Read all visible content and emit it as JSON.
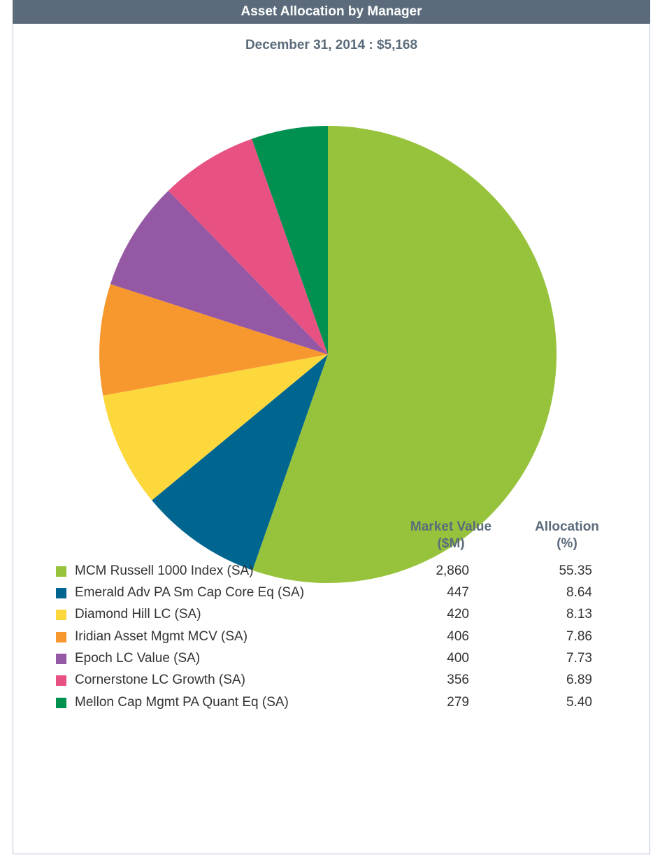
{
  "chart_data": {
    "type": "pie",
    "title": "Asset Allocation by Manager",
    "subtitle": "December 31, 2014 : $5,168",
    "categories": [
      "MCM Russell 1000 Index (SA)",
      "Emerald Adv PA Sm Cap Core Eq (SA)",
      "Diamond Hill LC (SA)",
      "Iridian Asset Mgmt MCV (SA)",
      "Epoch LC Value (SA)",
      "Cornerstone LC Growth (SA)",
      "Mellon Cap Mgmt PA Quant Eq (SA)"
    ],
    "colors": [
      "#97c33c",
      "#006690",
      "#fdd83c",
      "#f7982f",
      "#9558a5",
      "#e75282",
      "#009150"
    ],
    "series": [
      {
        "name": "Market Value ($M)",
        "values": [
          2860,
          447,
          420,
          406,
          400,
          356,
          279
        ],
        "value_labels": [
          "2,860",
          "447",
          "420",
          "406",
          "400",
          "356",
          "279"
        ]
      },
      {
        "name": "Allocation (%)",
        "values": [
          55.35,
          8.64,
          8.13,
          7.86,
          7.73,
          6.89,
          5.4
        ],
        "value_labels": [
          "55.35",
          "8.64",
          "8.13",
          "7.86",
          "7.73",
          "6.89",
          "5.40"
        ]
      }
    ]
  }
}
